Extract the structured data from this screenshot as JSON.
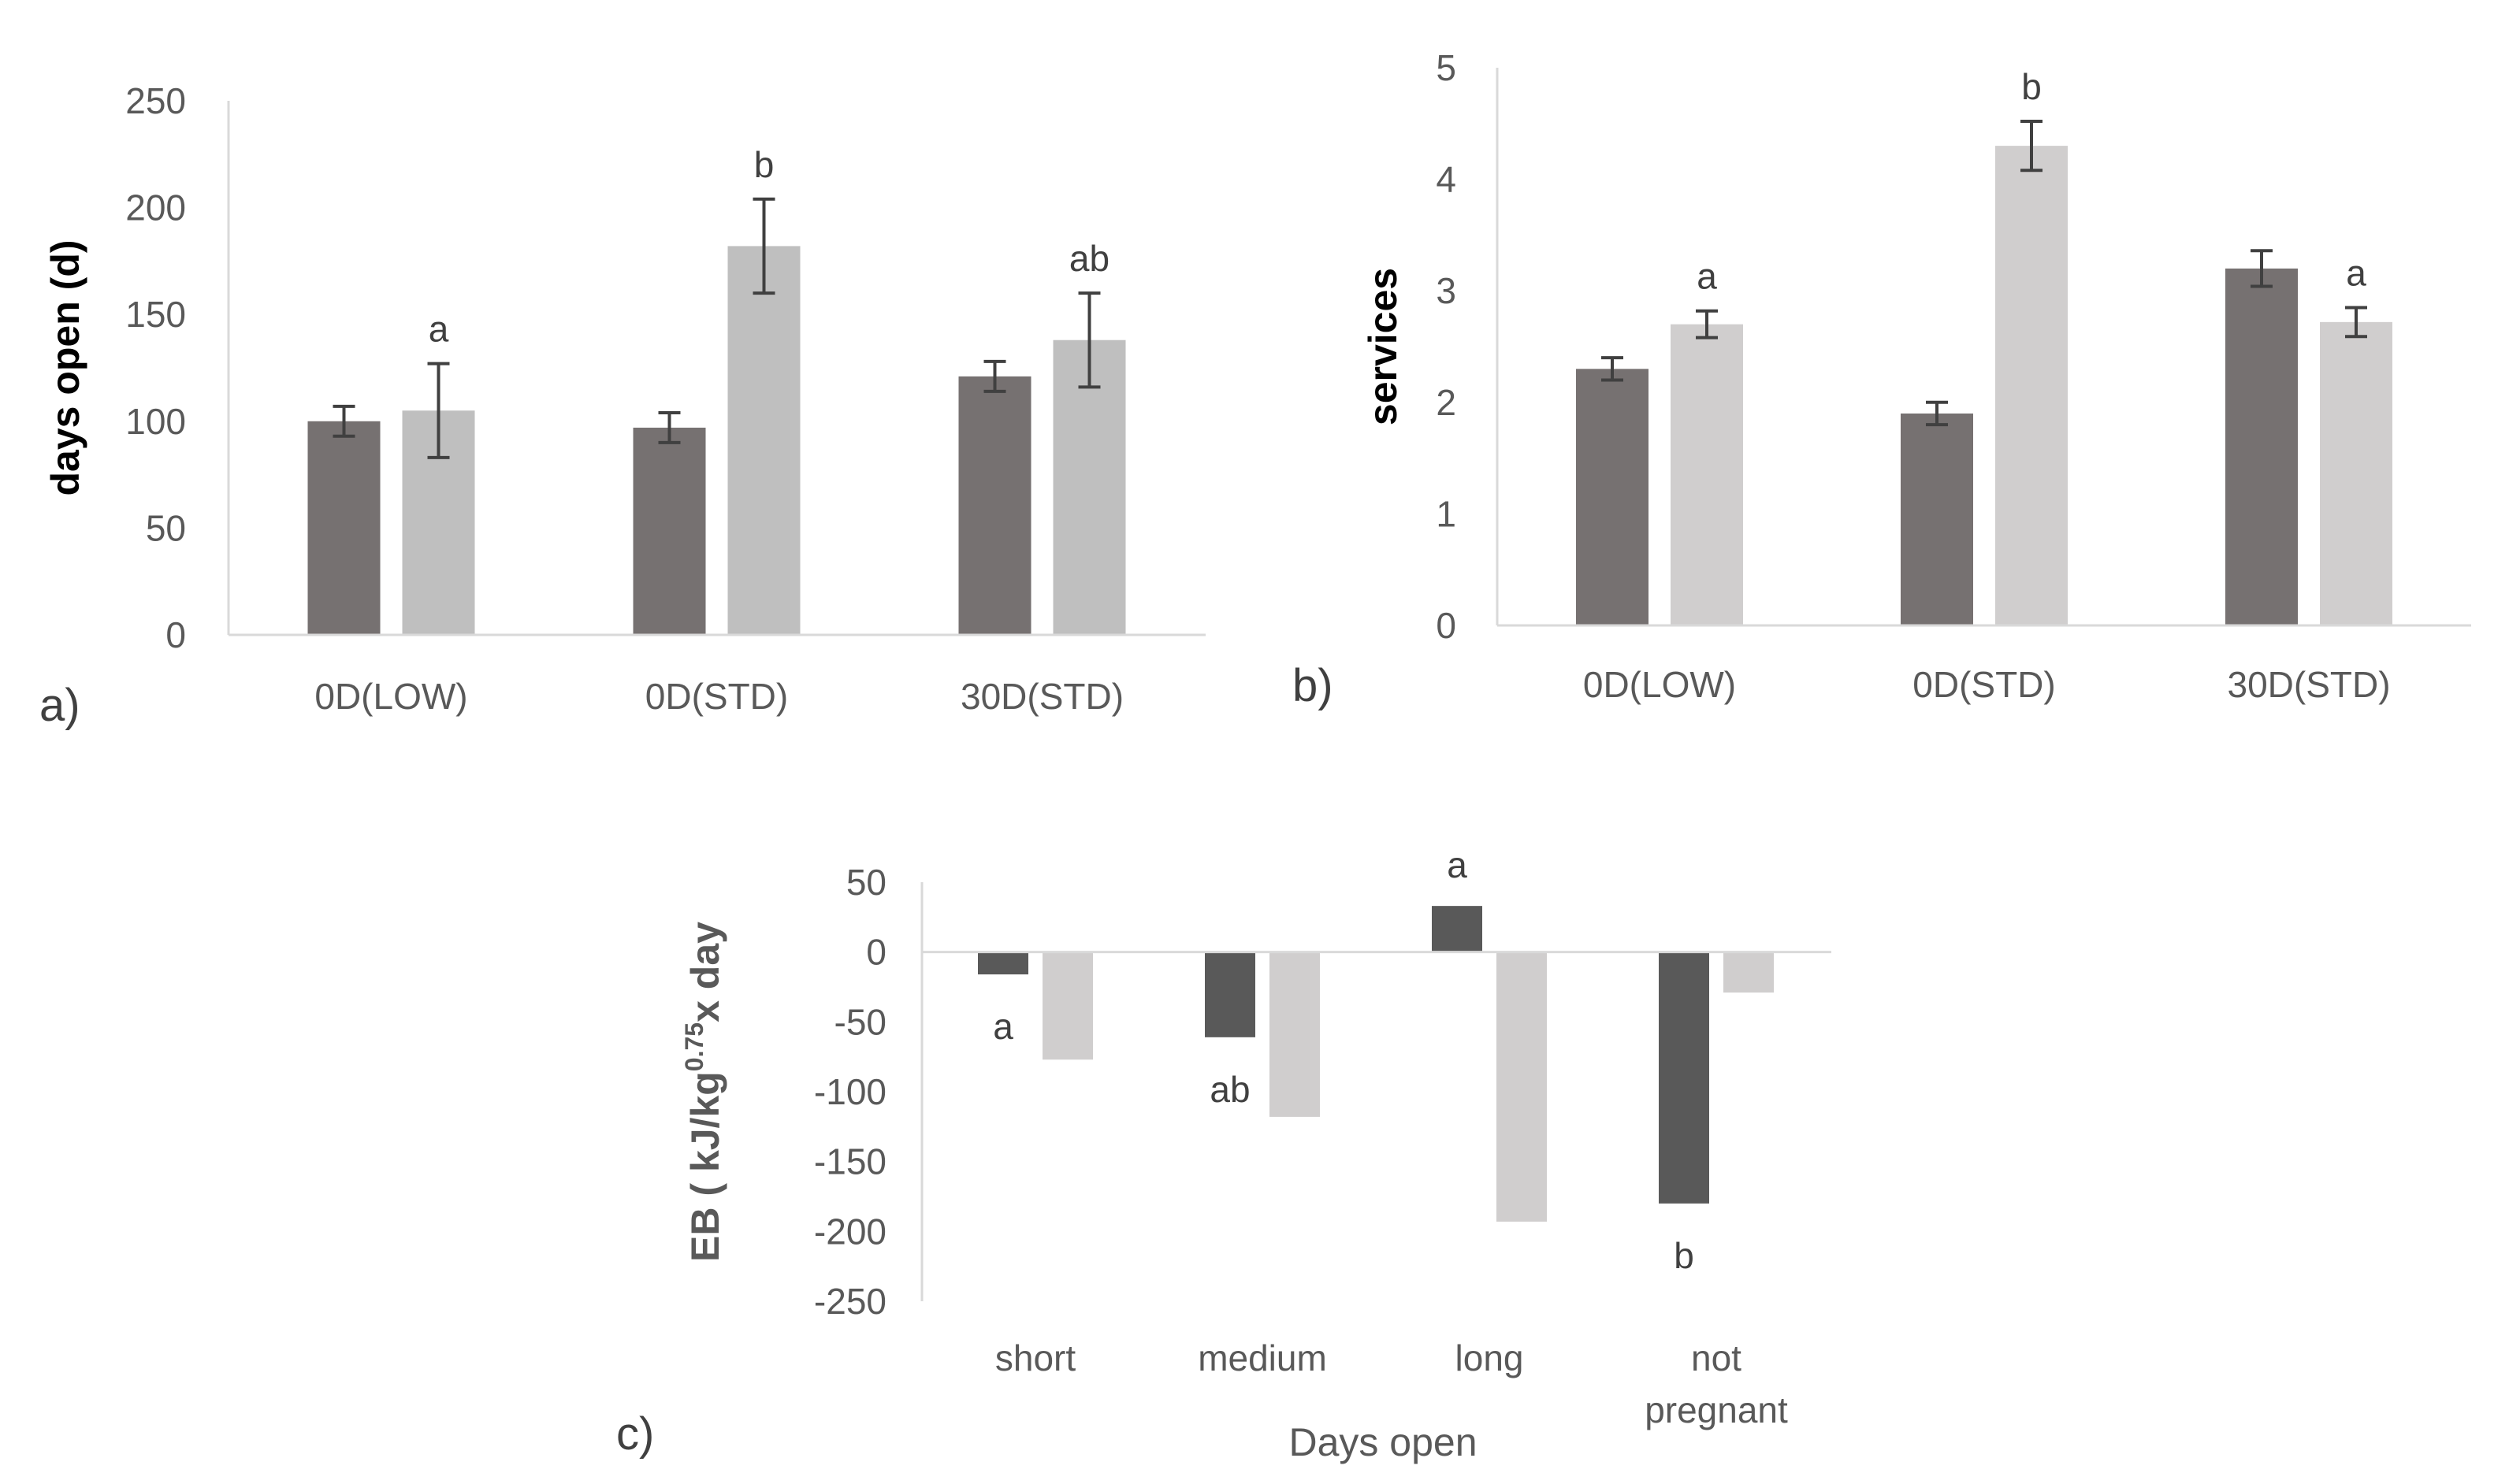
{
  "chart_data": [
    {
      "type": "bar",
      "panel_label": "a)",
      "ylabel": "days open (d)",
      "xlabel": "",
      "ylim": [
        0,
        250
      ],
      "yticks": [
        0,
        50,
        100,
        150,
        200,
        250
      ],
      "categories": [
        "0D(LOW)",
        "0D(STD)",
        "30D(STD)"
      ],
      "series": [
        {
          "name": "series 1",
          "color": "#767171",
          "values": [
            100,
            97,
            121
          ],
          "errors": [
            7,
            7,
            7
          ],
          "labels": [
            "",
            "",
            ""
          ]
        },
        {
          "name": "series 2",
          "color": "#bfbfbf",
          "values": [
            105,
            182,
            138
          ],
          "errors": [
            22,
            22,
            22
          ],
          "labels": [
            "a",
            "b",
            "ab"
          ]
        }
      ],
      "grid": false
    },
    {
      "type": "bar",
      "panel_label": "b)",
      "ylabel": "services",
      "xlabel": "",
      "ylim": [
        0,
        5
      ],
      "yticks": [
        0,
        1,
        2,
        3,
        4,
        5
      ],
      "categories": [
        "0D(LOW)",
        "0D(STD)",
        "30D(STD)"
      ],
      "series": [
        {
          "name": "series 1",
          "color": "#767171",
          "values": [
            2.3,
            1.9,
            3.2
          ],
          "errors": [
            0.1,
            0.1,
            0.16
          ],
          "labels": [
            "",
            "",
            ""
          ]
        },
        {
          "name": "series 2",
          "color": "#d0cece",
          "values": [
            2.7,
            4.3,
            2.72
          ],
          "errors": [
            0.12,
            0.22,
            0.13
          ],
          "labels": [
            "a",
            "b",
            "a"
          ]
        }
      ],
      "grid": false
    },
    {
      "type": "bar",
      "panel_label": "c)",
      "ylabel_parts": [
        "EB ( kJ/kg",
        "0.75",
        "x day"
      ],
      "xlabel": "Days open",
      "ylim": [
        -250,
        50
      ],
      "yticks": [
        -250,
        -200,
        -150,
        -100,
        -50,
        0,
        50
      ],
      "categories": [
        [
          "short"
        ],
        [
          "medium"
        ],
        [
          "long"
        ],
        [
          "not",
          "pregnant"
        ]
      ],
      "series": [
        {
          "name": "series 1",
          "color": "#595959",
          "values": [
            -16,
            -61,
            33,
            -180
          ],
          "labels": [
            "a",
            "ab",
            "a",
            "b"
          ]
        },
        {
          "name": "series 2",
          "color": "#d0cece",
          "values": [
            -77,
            -118,
            -193,
            -29
          ],
          "labels": [
            "",
            "",
            "",
            ""
          ]
        }
      ],
      "grid": false
    }
  ]
}
